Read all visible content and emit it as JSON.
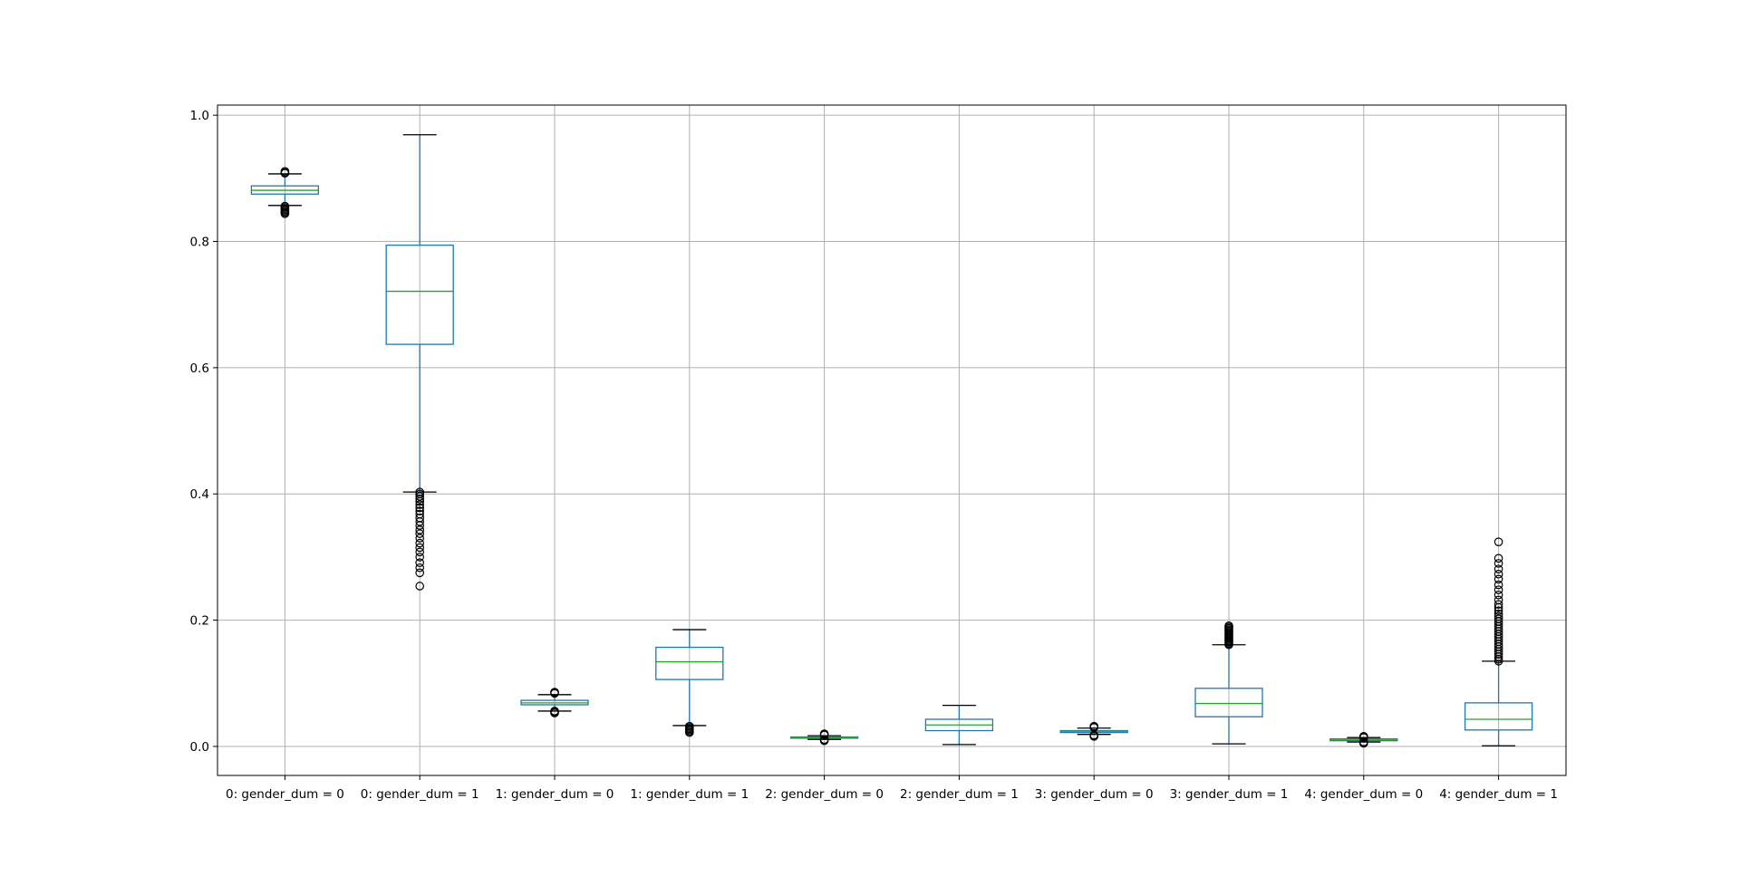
{
  "chart_data": {
    "type": "box",
    "title": "",
    "xlabel": "",
    "ylabel": "",
    "ylim": [
      -0.046,
      1.016
    ],
    "yticks": [
      0.0,
      0.2,
      0.4,
      0.6,
      0.8,
      1.0
    ],
    "ytick_labels": [
      "0.0",
      "0.2",
      "0.4",
      "0.6",
      "0.8",
      "1.0"
    ],
    "grid": true,
    "colors": {
      "box": "#1f77b4",
      "median": "#2ca02c",
      "whisker": "#1f77b4",
      "cap": "#000000",
      "flier": "#000000",
      "grid": "#b0b0b0",
      "axis": "#000000"
    },
    "categories": [
      "0: gender_dum = 0",
      "0: gender_dum = 1",
      "1: gender_dum = 0",
      "1: gender_dum = 1",
      "2: gender_dum = 0",
      "2: gender_dum = 1",
      "3: gender_dum = 0",
      "3: gender_dum = 1",
      "4: gender_dum = 0",
      "4: gender_dum = 1"
    ],
    "boxes": [
      {
        "whislo": 0.857,
        "q1": 0.875,
        "med": 0.881,
        "q3": 0.888,
        "whishi": 0.907,
        "fliers": [
          0.844,
          0.846,
          0.848,
          0.85,
          0.852,
          0.854,
          0.856,
          0.908,
          0.909,
          0.911
        ]
      },
      {
        "whislo": 0.403,
        "q1": 0.637,
        "med": 0.721,
        "q3": 0.794,
        "whishi": 0.969,
        "fliers": [
          0.254,
          0.275,
          0.283,
          0.291,
          0.3,
          0.308,
          0.315,
          0.322,
          0.33,
          0.337,
          0.343,
          0.35,
          0.356,
          0.362,
          0.368,
          0.373,
          0.378,
          0.383,
          0.388,
          0.392,
          0.396,
          0.4,
          0.403
        ]
      },
      {
        "whislo": 0.056,
        "q1": 0.066,
        "med": 0.069,
        "q3": 0.073,
        "whishi": 0.082,
        "fliers": [
          0.053,
          0.054,
          0.055,
          0.056,
          0.084,
          0.085,
          0.086
        ]
      },
      {
        "whislo": 0.033,
        "q1": 0.106,
        "med": 0.134,
        "q3": 0.157,
        "whishi": 0.185,
        "fliers": [
          0.022,
          0.024,
          0.026,
          0.028,
          0.03,
          0.032
        ]
      },
      {
        "whislo": 0.011,
        "q1": 0.013,
        "med": 0.014,
        "q3": 0.015,
        "whishi": 0.017,
        "fliers": [
          0.009,
          0.01,
          0.011,
          0.018,
          0.019,
          0.02
        ]
      },
      {
        "whislo": 0.003,
        "q1": 0.025,
        "med": 0.034,
        "q3": 0.043,
        "whishi": 0.065,
        "fliers": []
      },
      {
        "whislo": 0.019,
        "q1": 0.022,
        "med": 0.024,
        "q3": 0.025,
        "whishi": 0.029,
        "fliers": [
          0.016,
          0.017,
          0.018,
          0.03,
          0.031,
          0.032
        ]
      },
      {
        "whislo": 0.004,
        "q1": 0.047,
        "med": 0.068,
        "q3": 0.092,
        "whishi": 0.161,
        "fliers": [
          0.161,
          0.163,
          0.165,
          0.167,
          0.169,
          0.171,
          0.173,
          0.175,
          0.177,
          0.179,
          0.181,
          0.183,
          0.185,
          0.187,
          0.189,
          0.191
        ]
      },
      {
        "whislo": 0.007,
        "q1": 0.009,
        "med": 0.011,
        "q3": 0.012,
        "whishi": 0.014,
        "fliers": [
          0.005,
          0.006,
          0.007,
          0.014,
          0.015,
          0.016
        ]
      },
      {
        "whislo": 0.001,
        "q1": 0.026,
        "med": 0.043,
        "q3": 0.069,
        "whishi": 0.135,
        "fliers": [
          0.135,
          0.138,
          0.142,
          0.146,
          0.15,
          0.154,
          0.158,
          0.162,
          0.166,
          0.17,
          0.174,
          0.178,
          0.182,
          0.186,
          0.19,
          0.194,
          0.198,
          0.202,
          0.206,
          0.21,
          0.215,
          0.22,
          0.225,
          0.232,
          0.24,
          0.248,
          0.256,
          0.265,
          0.273,
          0.281,
          0.29,
          0.298,
          0.324
        ]
      }
    ]
  }
}
